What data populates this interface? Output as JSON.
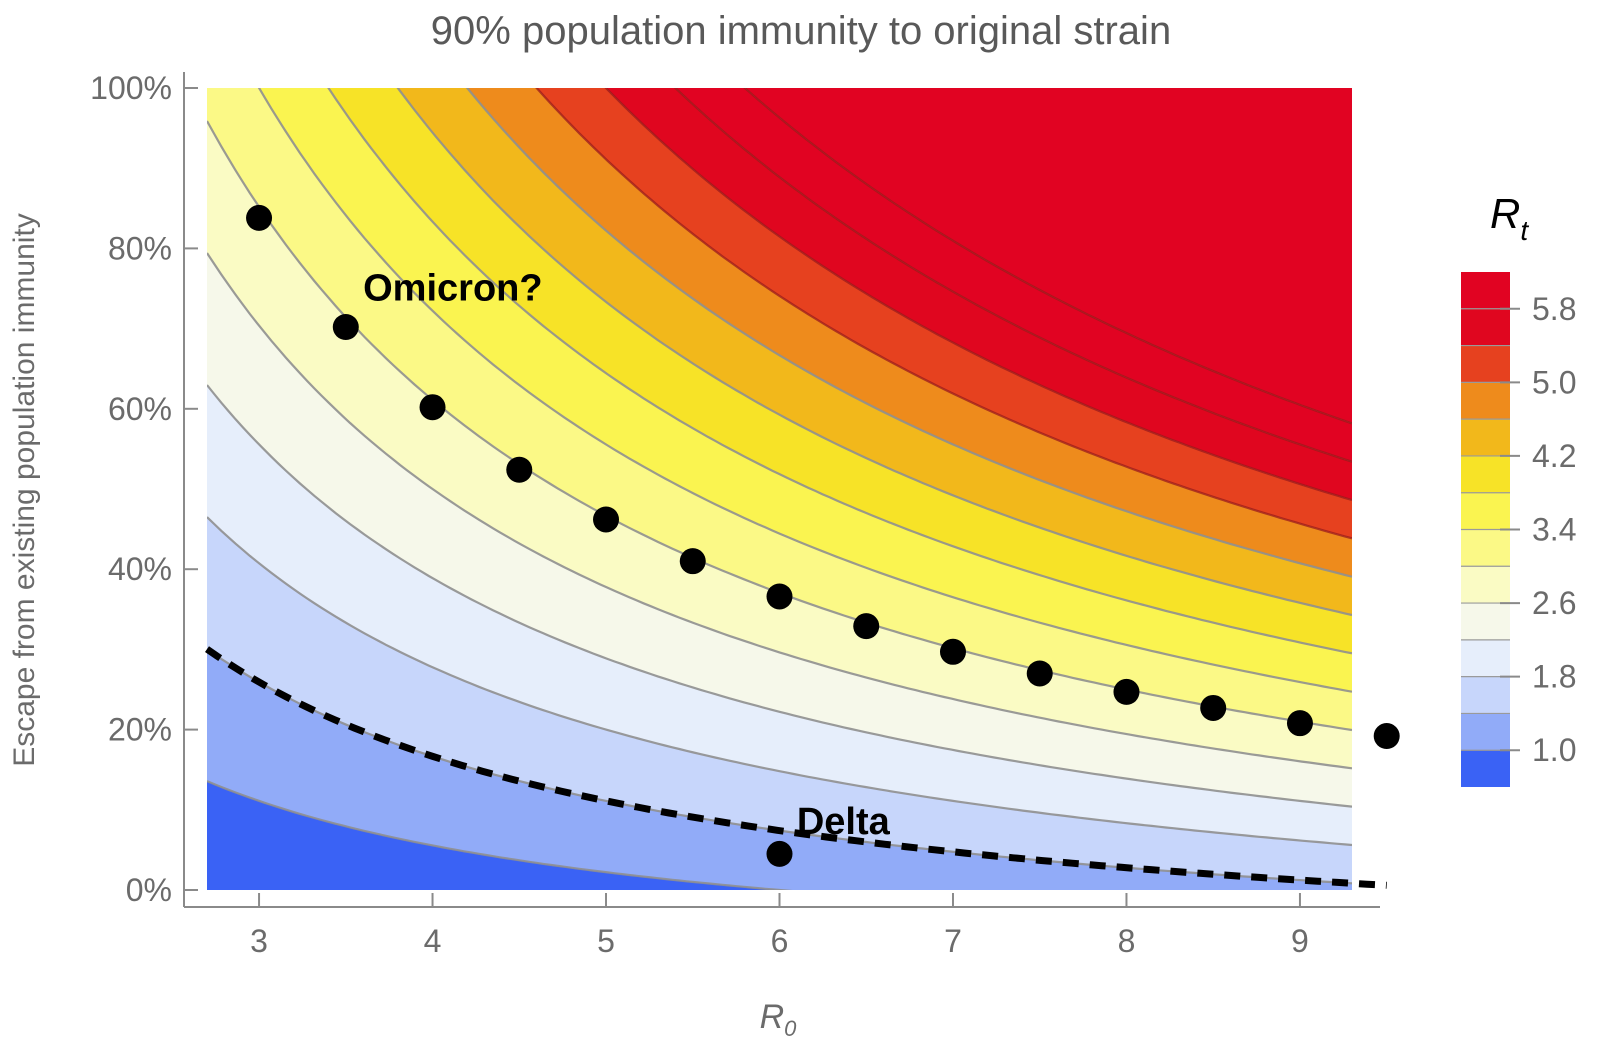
{
  "chart_data": {
    "type": "heatmap",
    "title": "90% population immunity to original strain",
    "xlabel_base": "R",
    "xlabel_sub": "0",
    "ylabel": "Escape from existing population immunity",
    "x_range": [
      2.7,
      9.3
    ],
    "y_range": [
      0,
      1
    ],
    "x_ticks": [
      3,
      4,
      5,
      6,
      7,
      8,
      9
    ],
    "x_tick_labels": [
      "3",
      "4",
      "5",
      "6",
      "7",
      "8",
      "9"
    ],
    "y_ticks": [
      0,
      0.2,
      0.4,
      0.6,
      0.8,
      1.0
    ],
    "y_tick_labels": [
      "0%",
      "20%",
      "40%",
      "60%",
      "80%",
      "100%"
    ],
    "population_immunity": 0.9,
    "contour_levels": [
      0.6,
      1.0,
      1.4,
      1.8,
      2.2,
      2.6,
      3.0,
      3.4,
      3.8,
      4.2,
      4.6,
      5.0,
      5.4,
      5.8
    ],
    "band_colors": [
      "#3a62f5",
      "#91abf8",
      "#c7d6fb",
      "#e6eefb",
      "#f6f8ea",
      "#fafbc4",
      "#fbf986",
      "#faf450",
      "#f7e327",
      "#f2b81b",
      "#ee8b1c",
      "#e6411f",
      "#e0061f",
      "#e10322",
      "#e10322"
    ],
    "legend": {
      "title_base": "R",
      "title_sub": "t",
      "tick_values": [
        1.0,
        1.8,
        2.6,
        3.4,
        4.2,
        5.0,
        5.8
      ],
      "tick_labels": [
        "1.0",
        "1.8",
        "2.6",
        "3.4",
        "4.2",
        "5.0",
        "5.8"
      ],
      "bands": [
        {
          "from": 0.6,
          "to": 1.0,
          "color": "#3a62f5"
        },
        {
          "from": 1.0,
          "to": 1.4,
          "color": "#91abf8"
        },
        {
          "from": 1.4,
          "to": 1.8,
          "color": "#c7d6fb"
        },
        {
          "from": 1.8,
          "to": 2.2,
          "color": "#e6eefb"
        },
        {
          "from": 2.2,
          "to": 2.6,
          "color": "#f6f8ea"
        },
        {
          "from": 2.6,
          "to": 3.0,
          "color": "#fafbc4"
        },
        {
          "from": 3.0,
          "to": 3.4,
          "color": "#fbf986"
        },
        {
          "from": 3.4,
          "to": 3.8,
          "color": "#faf450"
        },
        {
          "from": 3.8,
          "to": 4.2,
          "color": "#f7e327"
        },
        {
          "from": 4.2,
          "to": 4.6,
          "color": "#f2b81b"
        },
        {
          "from": 4.6,
          "to": 5.0,
          "color": "#ee8b1c"
        },
        {
          "from": 5.0,
          "to": 5.4,
          "color": "#e6411f"
        },
        {
          "from": 5.4,
          "to": 5.8,
          "color": "#e0061f"
        },
        {
          "from": 5.8,
          "to": 6.2,
          "color": "#e10322"
        }
      ]
    },
    "threshold_curve": {
      "style": "dashed",
      "color": "#000000",
      "x_range": [
        2.7,
        9.5
      ]
    },
    "points": [
      {
        "x": 3.0,
        "y": 0.838
      },
      {
        "x": 3.5,
        "y": 0.702
      },
      {
        "x": 4.0,
        "y": 0.602
      },
      {
        "x": 4.5,
        "y": 0.524
      },
      {
        "x": 5.0,
        "y": 0.462
      },
      {
        "x": 5.5,
        "y": 0.41
      },
      {
        "x": 6.0,
        "y": 0.366
      },
      {
        "x": 6.5,
        "y": 0.329
      },
      {
        "x": 7.0,
        "y": 0.297
      },
      {
        "x": 7.5,
        "y": 0.27
      },
      {
        "x": 8.0,
        "y": 0.247
      },
      {
        "x": 8.5,
        "y": 0.227
      },
      {
        "x": 9.0,
        "y": 0.208
      },
      {
        "x": 9.5,
        "y": 0.192
      }
    ],
    "annotations": [
      {
        "text": "Omicron?",
        "x": 3.6,
        "y": 0.735
      },
      {
        "text": "Delta",
        "x": 6.1,
        "y": 0.07,
        "point": {
          "x": 6.0,
          "y": 0.045
        }
      }
    ]
  }
}
